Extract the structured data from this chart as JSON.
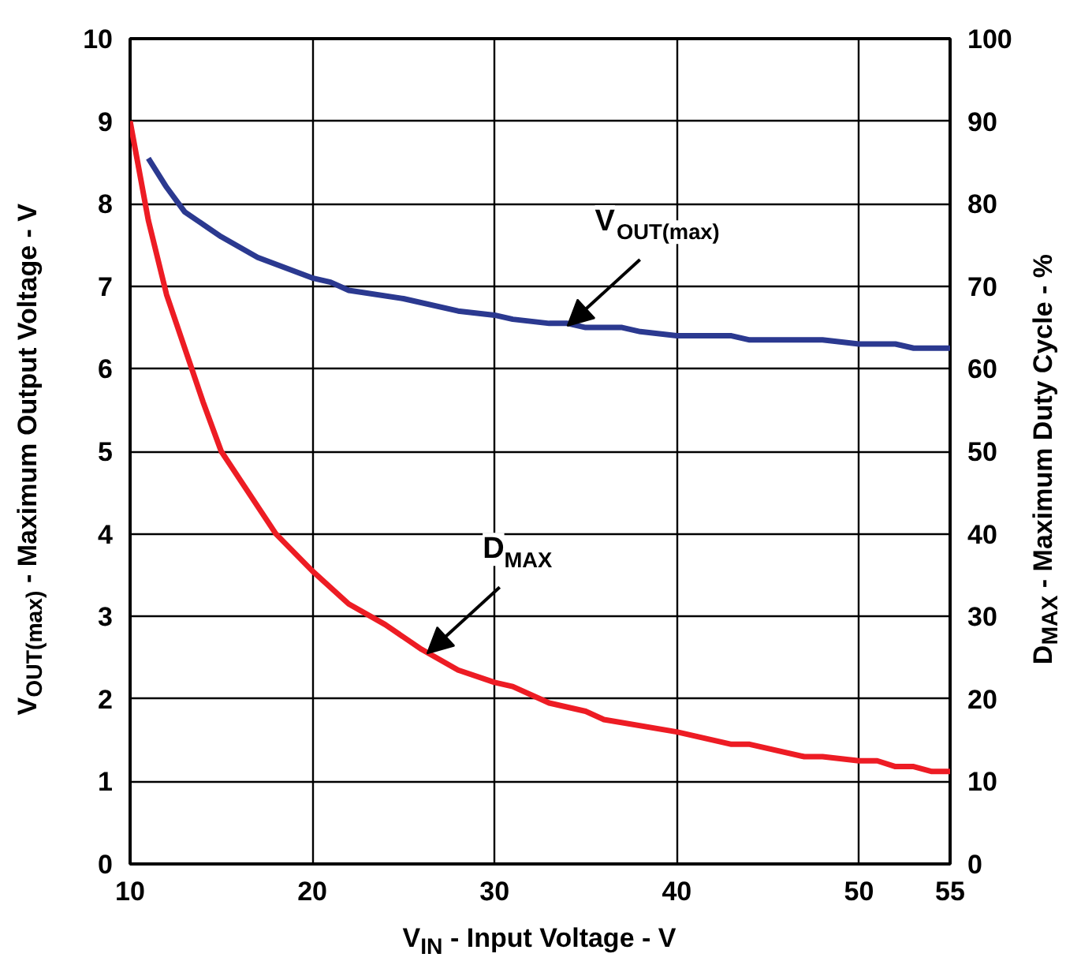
{
  "chart_data": {
    "type": "line",
    "xlabel": "V$_{IN}$ - Input Voltage - V",
    "ylabel": "V$_{OUT(max)}$ - Maximum Output Voltage - V",
    "y2label": "D$_{MAX}$ - Maximum Duty Cycle - %",
    "xlim": [
      10,
      55
    ],
    "xticks": [
      10,
      20,
      30,
      40,
      50,
      55
    ],
    "ylim": [
      0,
      10
    ],
    "yticks": [
      0,
      1,
      2,
      3,
      4,
      5,
      6,
      7,
      8,
      9,
      10
    ],
    "y2lim": [
      0,
      100
    ],
    "y2ticks": [
      0,
      10,
      20,
      30,
      40,
      50,
      60,
      70,
      80,
      90,
      100
    ],
    "grid": true,
    "line_style": "solid",
    "marker": "none",
    "series": [
      {
        "color": "#2b3990",
        "x": [
          11,
          12,
          13,
          15,
          17,
          20,
          21,
          22,
          25,
          28,
          30,
          31,
          33,
          34,
          35,
          37,
          38,
          40,
          43,
          44,
          48,
          50,
          52,
          53,
          55
        ],
        "values": [
          8.55,
          8.2,
          7.9,
          7.6,
          7.35,
          7.1,
          7.05,
          6.95,
          6.85,
          6.7,
          6.65,
          6.6,
          6.55,
          6.55,
          6.5,
          6.5,
          6.45,
          6.4,
          6.4,
          6.35,
          6.35,
          6.3,
          6.3,
          6.25,
          6.25
        ]
      },
      {
        "color": "#ed1c24",
        "axis": "y2",
        "x": [
          10,
          11,
          12,
          14,
          15,
          18,
          20,
          22,
          24,
          26,
          28,
          30,
          31,
          33,
          35,
          36,
          40,
          43,
          44,
          47,
          48,
          50,
          51,
          52,
          53,
          54,
          55
        ],
        "values": [
          90,
          78,
          69,
          56,
          50,
          40,
          35.5,
          31.5,
          29,
          26,
          23.5,
          22,
          21.5,
          19.5,
          18.5,
          17.5,
          16,
          14.5,
          14.5,
          13,
          13,
          12.5,
          12.5,
          11.8,
          11.8,
          11.2,
          11.2
        ]
      }
    ],
    "annotations": [
      {
        "text": "V$_{OUT(max)}$",
        "x": 34,
        "y": 6.52
      },
      {
        "text": "D$_{MAX}$",
        "x": 26.3,
        "y": 2.55
      }
    ]
  }
}
